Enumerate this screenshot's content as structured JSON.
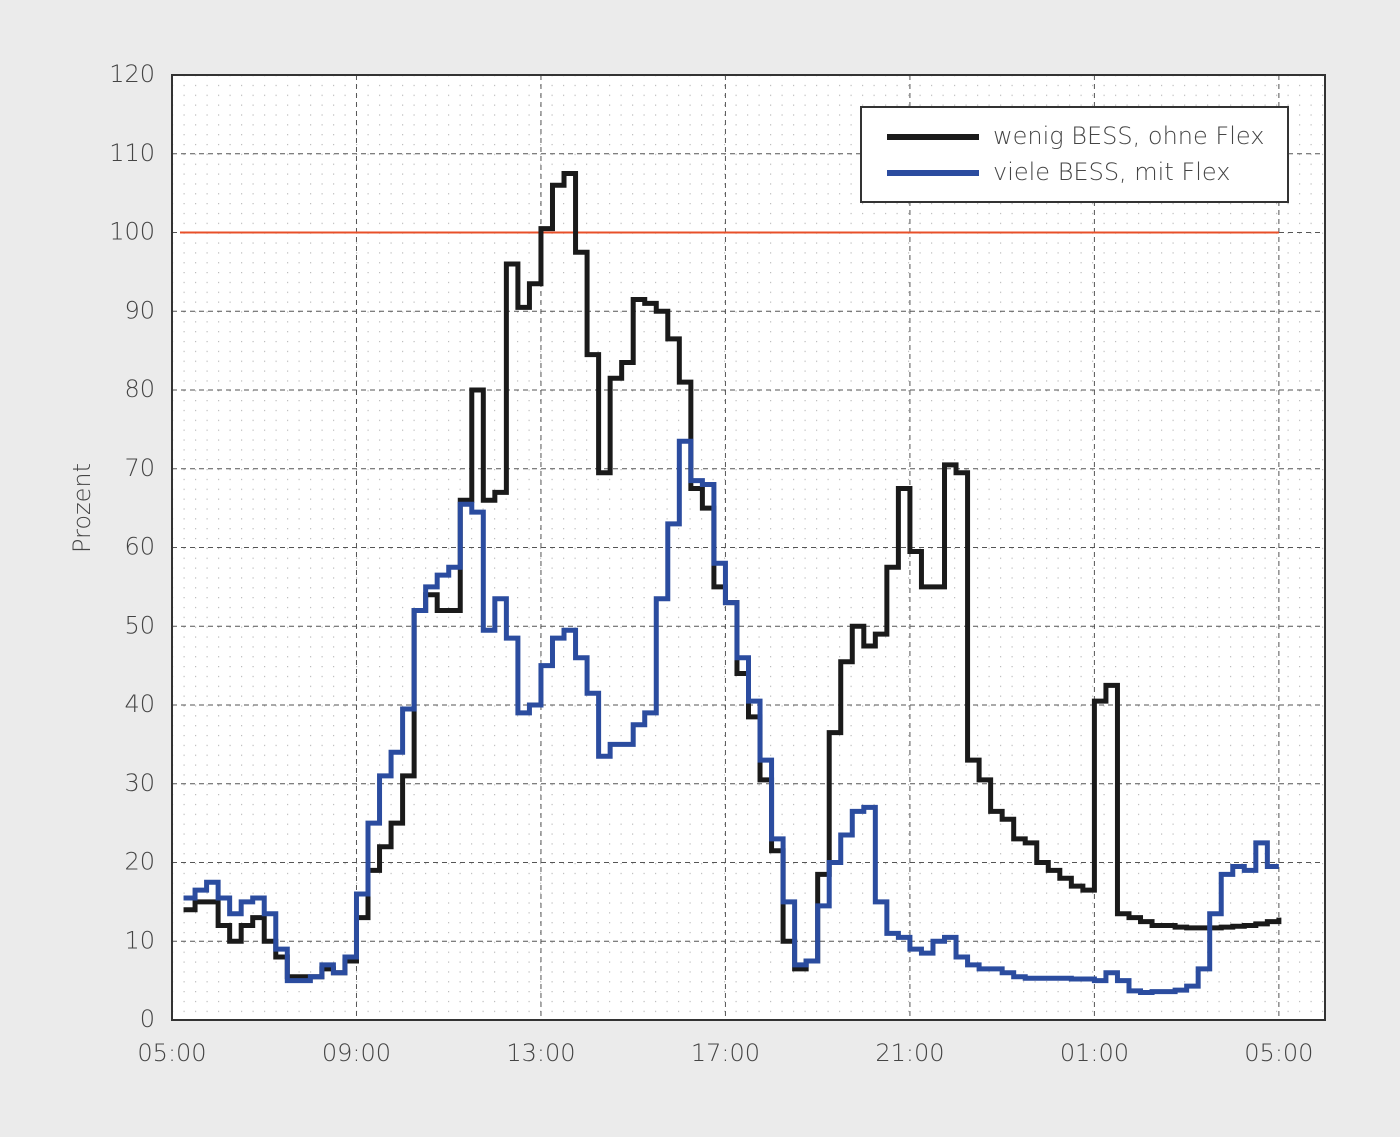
{
  "chart_data": {
    "type": "step-line",
    "y_label": "Prozent",
    "xlim": [
      0,
      25
    ],
    "ylim": [
      0,
      120
    ],
    "xticks": [
      {
        "value": 0,
        "label": "05:00"
      },
      {
        "value": 4,
        "label": "09:00"
      },
      {
        "value": 8,
        "label": "13:00"
      },
      {
        "value": 12,
        "label": "17:00"
      },
      {
        "value": 16,
        "label": "21:00"
      },
      {
        "value": 20,
        "label": "01:00"
      },
      {
        "value": 24,
        "label": "05:00"
      }
    ],
    "yticks": [
      0,
      10,
      20,
      30,
      40,
      50,
      60,
      70,
      80,
      90,
      100,
      110,
      120
    ],
    "grid": true,
    "legend": "upper right",
    "reference_line": {
      "value": 100,
      "color": "#e8502a"
    },
    "x": [
      0.25,
      0.5,
      0.75,
      1,
      1.25,
      1.5,
      1.75,
      2,
      2.25,
      2.5,
      2.75,
      3,
      3.25,
      3.5,
      3.75,
      4,
      4.25,
      4.5,
      4.75,
      5,
      5.25,
      5.5,
      5.75,
      6,
      6.25,
      6.5,
      6.75,
      7,
      7.25,
      7.5,
      7.75,
      8,
      8.25,
      8.5,
      8.75,
      9,
      9.25,
      9.5,
      9.75,
      10,
      10.25,
      10.5,
      10.75,
      11,
      11.25,
      11.5,
      11.75,
      12,
      12.25,
      12.5,
      12.75,
      13,
      13.25,
      13.5,
      13.75,
      14,
      14.25,
      14.5,
      14.75,
      15,
      15.25,
      15.5,
      15.75,
      16,
      16.25,
      16.5,
      16.75,
      17,
      17.25,
      17.5,
      17.75,
      18,
      18.25,
      18.5,
      18.75,
      19,
      19.25,
      19.5,
      19.75,
      20,
      20.25,
      20.5,
      20.75,
      21,
      21.25,
      21.5,
      21.75,
      22,
      22.25,
      22.5,
      22.75,
      23,
      23.25,
      23.5,
      23.75,
      24
    ],
    "series": [
      {
        "name": "wenig BESS, ohne Flex",
        "color": "#1a1a1a",
        "values": [
          14,
          15,
          15,
          12,
          10,
          12,
          13,
          10,
          8,
          5.5,
          5.5,
          5.5,
          6.5,
          6,
          7.5,
          13,
          19,
          22,
          25,
          31,
          52,
          54,
          52,
          52,
          66,
          80,
          66,
          67,
          96,
          90.5,
          93.5,
          100.5,
          106,
          107.5,
          97.5,
          84.5,
          69.5,
          81.5,
          83.5,
          91.5,
          91,
          90,
          86.5,
          81,
          67.5,
          65,
          55,
          53,
          44,
          38.5,
          30.5,
          21.5,
          10,
          6.5,
          7.5,
          18.5,
          36.5,
          45.5,
          50,
          47.5,
          49,
          57.5,
          67.5,
          59.5,
          55,
          55,
          70.5,
          69.5,
          33,
          30.5,
          26.5,
          25.5,
          23,
          22.5,
          20,
          19,
          18,
          17,
          16.5,
          40.5,
          42.5,
          13.5,
          13,
          12.5,
          12,
          12,
          11.8,
          11.7,
          11.7,
          11.7,
          11.8,
          11.9,
          12,
          12.2,
          12.5,
          13
        ]
      },
      {
        "name": "viele BESS, mit Flex",
        "color": "#2b4c9f",
        "values": [
          15.5,
          16.5,
          17.5,
          15.5,
          13.5,
          15,
          15.5,
          13.5,
          9,
          5,
          5,
          5.5,
          7,
          6,
          8,
          16,
          25,
          31,
          34,
          39.5,
          52,
          55,
          56.5,
          57.5,
          65.5,
          64.5,
          49.5,
          53.5,
          48.5,
          39,
          40,
          45,
          48.5,
          49.5,
          46,
          41.5,
          33.5,
          35,
          35,
          37.5,
          39,
          53.5,
          63,
          73.5,
          68.5,
          68,
          58,
          53,
          46,
          40.5,
          33,
          23,
          15,
          7,
          7.5,
          14.5,
          20,
          23.5,
          26.5,
          27,
          15,
          11,
          10.5,
          9,
          8.5,
          10,
          10.5,
          8,
          7,
          6.5,
          6.5,
          6,
          5.5,
          5.3,
          5.3,
          5.3,
          5.3,
          5.2,
          5.2,
          5,
          6,
          5,
          3.7,
          3.5,
          3.6,
          3.6,
          3.8,
          4.3,
          6.5,
          13.5,
          18.5,
          19.5,
          19,
          22.5,
          19.5,
          19.5
        ]
      }
    ]
  }
}
